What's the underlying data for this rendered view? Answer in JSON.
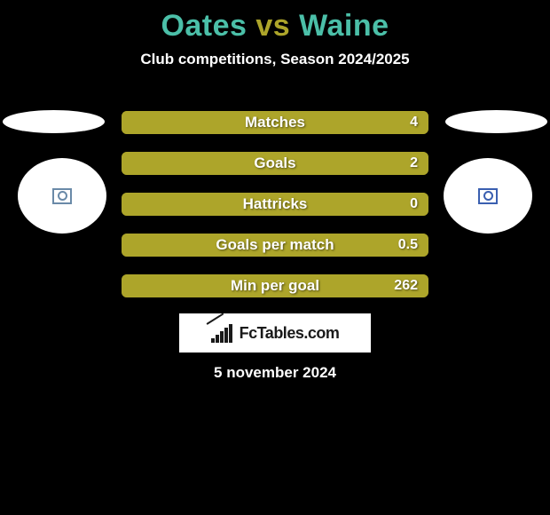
{
  "title_parts": {
    "p1": "Oates",
    "vs": "vs",
    "p2": "Waine"
  },
  "title_colors": {
    "p1": "#4bbfa8",
    "vs": "#ada52a",
    "p2": "#4bbfa8"
  },
  "subtitle": "Club competitions, Season 2024/2025",
  "icon_colors": {
    "left": "#6a8aa8",
    "right": "#3a5fb0"
  },
  "bars": {
    "track_color": "#6f6a1c",
    "fill_color": "#ada52a",
    "label_fontsize": 17,
    "rows": [
      {
        "label": "Matches",
        "value": "4",
        "fill_pct": 100
      },
      {
        "label": "Goals",
        "value": "2",
        "fill_pct": 100
      },
      {
        "label": "Hattricks",
        "value": "0",
        "fill_pct": 100
      },
      {
        "label": "Goals per match",
        "value": "0.5",
        "fill_pct": 100
      },
      {
        "label": "Min per goal",
        "value": "262",
        "fill_pct": 100
      }
    ]
  },
  "logo_text": "FcTables.com",
  "date": "5 november 2024",
  "background_color": "#000000"
}
